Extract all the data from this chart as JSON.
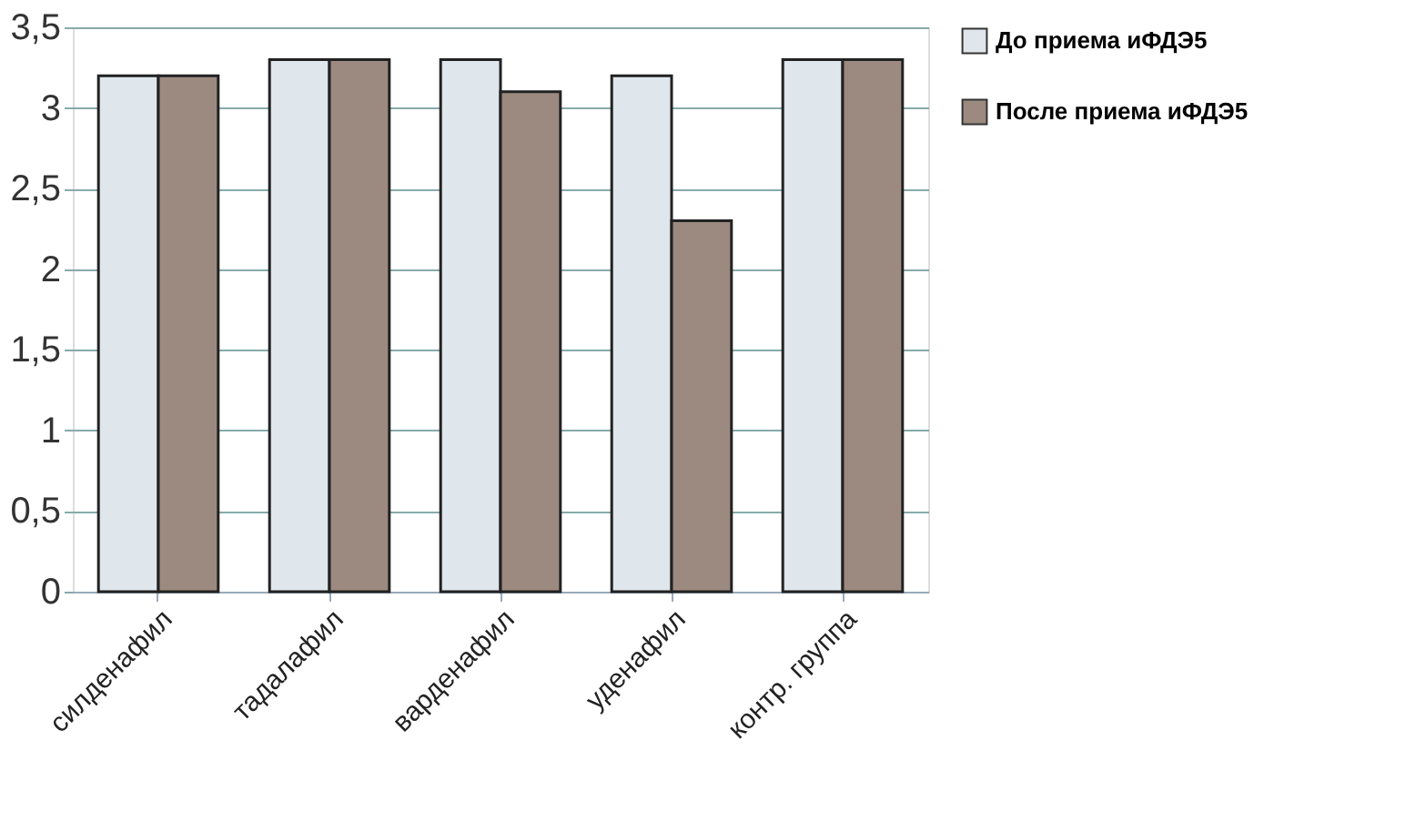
{
  "chart_data": {
    "type": "bar",
    "categories": [
      "силденафил",
      "тадалафил",
      "варденафил",
      "уденафил",
      "контр. группа"
    ],
    "series": [
      {
        "name": "До приема иФДЭ5",
        "color": "#dfe6ec",
        "values": [
          3.2,
          3.3,
          3.3,
          3.2,
          3.3
        ]
      },
      {
        "name": "После приема иФДЭ5",
        "color": "#9c8a80",
        "values": [
          3.2,
          3.3,
          3.1,
          2.3,
          3.3
        ]
      }
    ],
    "ylim": [
      0,
      3.5
    ],
    "yticks": [
      {
        "value": 0,
        "label": "0"
      },
      {
        "value": 0.5,
        "label": "0,5"
      },
      {
        "value": 1,
        "label": "1"
      },
      {
        "value": 1.5,
        "label": "1,5"
      },
      {
        "value": 2,
        "label": "2"
      },
      {
        "value": 2.5,
        "label": "2,5"
      },
      {
        "value": 3,
        "label": "3"
      },
      {
        "value": 3.5,
        "label": "3,5"
      }
    ],
    "grid": "y",
    "legend": "right"
  }
}
